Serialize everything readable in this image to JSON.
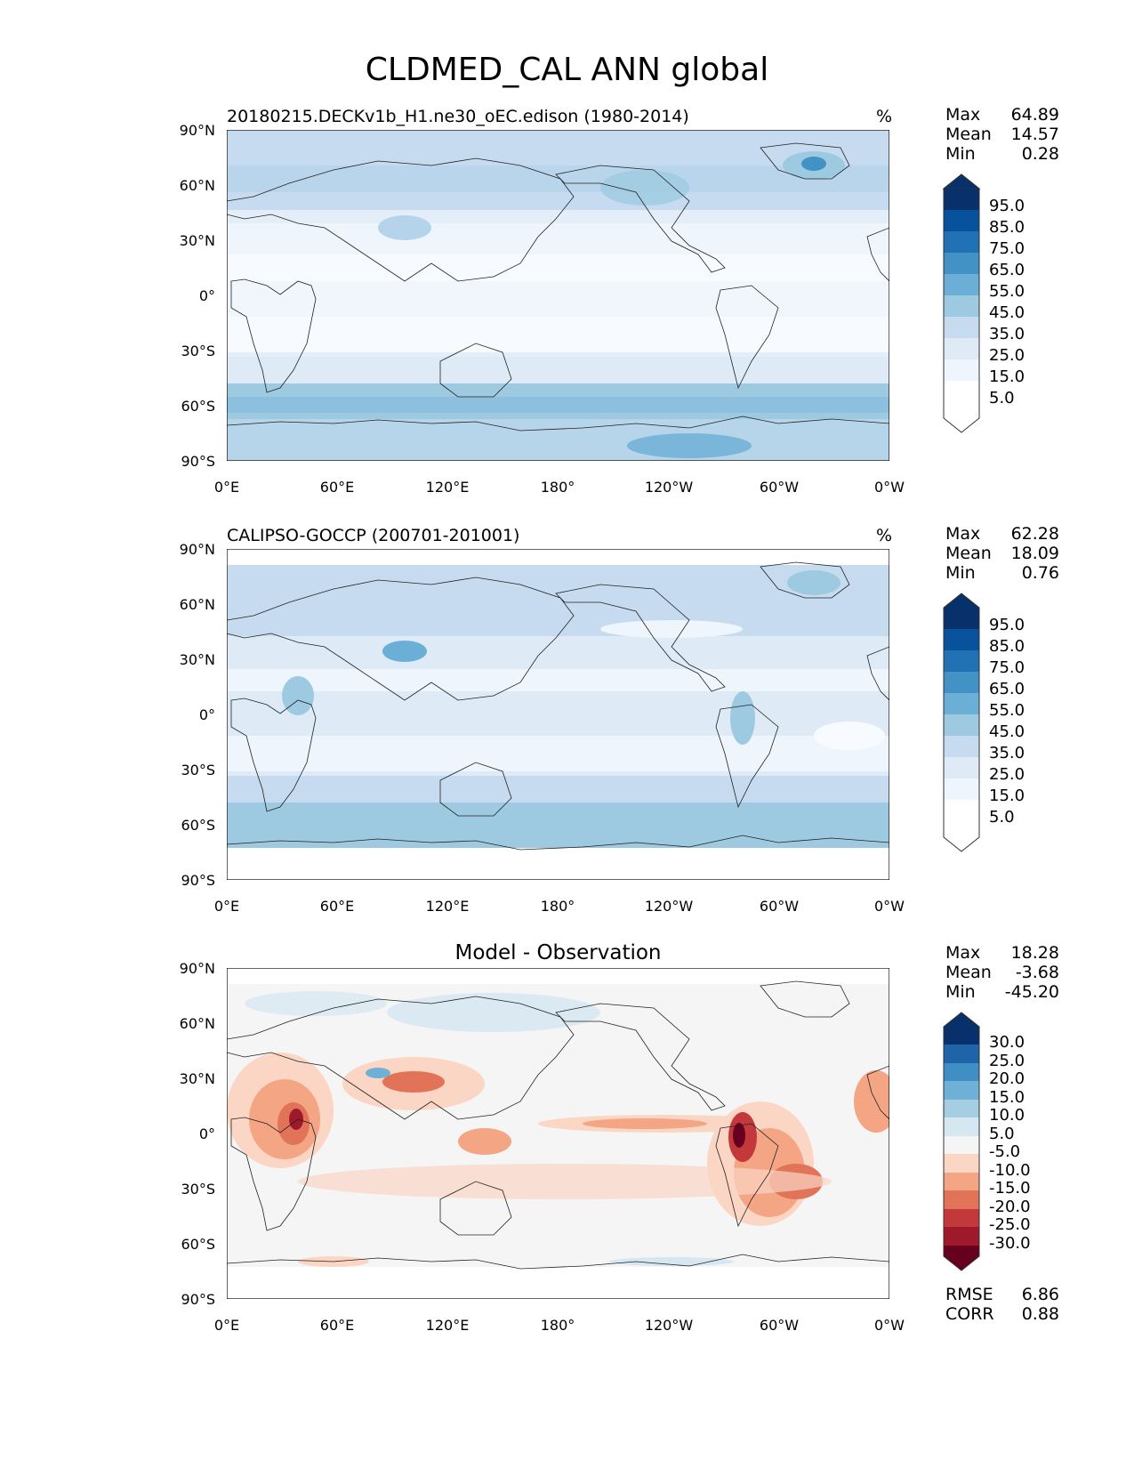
{
  "figure": {
    "title": "CLDMED_CAL ANN global"
  },
  "axes": {
    "lat_labels": [
      "90°N",
      "60°N",
      "30°N",
      "0°",
      "30°S",
      "60°S",
      "90°S"
    ],
    "lon_labels": [
      "0°E",
      "60°E",
      "120°E",
      "180°",
      "120°W",
      "60°W",
      "0°W"
    ]
  },
  "panels": [
    {
      "title": "20180215.DECKv1b_H1.ne30_oEC.edison (1980-2014)",
      "units": "%",
      "stats": {
        "max_label": "Max",
        "max": "64.89",
        "mean_label": "Mean",
        "mean": "14.57",
        "min_label": "Min",
        "min": "0.28"
      },
      "colorbar": {
        "labels": [
          "95.0",
          "85.0",
          "75.0",
          "65.0",
          "55.0",
          "45.0",
          "35.0",
          "25.0",
          "15.0",
          "5.0"
        ],
        "colors": [
          "#08306b",
          "#08519c",
          "#2171b5",
          "#4292c6",
          "#6baed6",
          "#9ecae1",
          "#c6dbef",
          "#deebf7",
          "#eef5fc",
          "#f7fbff"
        ]
      }
    },
    {
      "title": "CALIPSO-GOCCP (200701-201001)",
      "units": "%",
      "stats": {
        "max_label": "Max",
        "max": "62.28",
        "mean_label": "Mean",
        "mean": "18.09",
        "min_label": "Min",
        "min": "0.76"
      },
      "colorbar": {
        "labels": [
          "95.0",
          "85.0",
          "75.0",
          "65.0",
          "55.0",
          "45.0",
          "35.0",
          "25.0",
          "15.0",
          "5.0"
        ],
        "colors": [
          "#08306b",
          "#08519c",
          "#2171b5",
          "#4292c6",
          "#6baed6",
          "#9ecae1",
          "#c6dbef",
          "#deebf7",
          "#eef5fc",
          "#f7fbff"
        ]
      }
    },
    {
      "title": "Model - Observation",
      "units": "",
      "stats": {
        "max_label": "Max",
        "max": "18.28",
        "mean_label": "Mean",
        "mean": "-3.68",
        "min_label": "Min",
        "min": "-45.20"
      },
      "metrics": {
        "rmse_label": "RMSE",
        "rmse": "6.86",
        "corr_label": "CORR",
        "corr": "0.88"
      },
      "colorbar": {
        "labels": [
          "30.0",
          "25.0",
          "20.0",
          "15.0",
          "10.0",
          "5.0",
          "-5.0",
          "-10.0",
          "-15.0",
          "-20.0",
          "-25.0",
          "-30.0"
        ],
        "colors": [
          "#08306b",
          "#1f63a8",
          "#3f8fc5",
          "#6fb0d6",
          "#a6cee3",
          "#d5e7f1",
          "#f5f5f5",
          "#fbd6c4",
          "#f3a584",
          "#e07358",
          "#c3383a",
          "#9e1a2b",
          "#67001f"
        ]
      }
    }
  ]
}
